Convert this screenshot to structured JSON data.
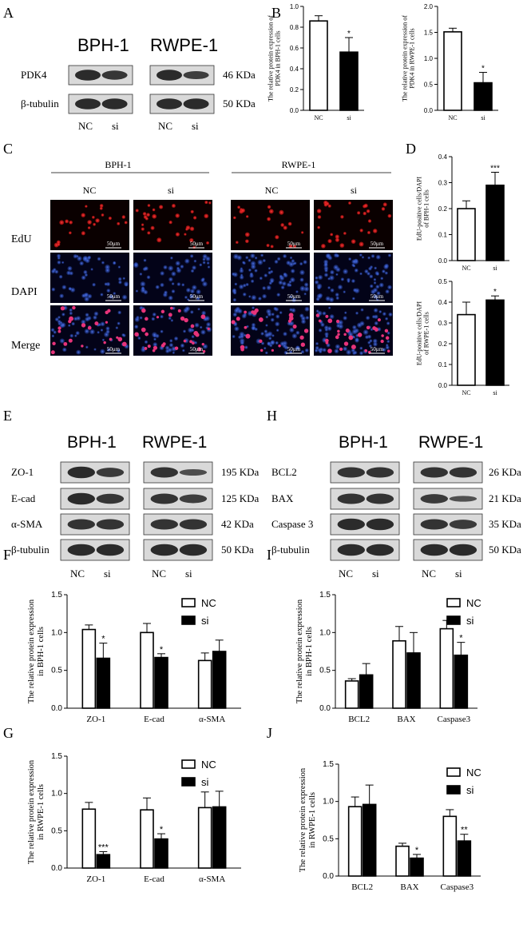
{
  "panel_labels": {
    "A": "A",
    "B": "B",
    "C": "C",
    "D": "D",
    "E": "E",
    "F": "F",
    "G": "G",
    "H": "H",
    "I": "I",
    "J": "J"
  },
  "cells": {
    "bph": "BPH-1",
    "rwpe": "RWPE-1"
  },
  "groups": {
    "nc": "NC",
    "si": "si"
  },
  "panel_a": {
    "proteins": [
      "PDK4",
      "β-tubulin"
    ],
    "sizes": [
      "46 KDa",
      "50 KDa"
    ]
  },
  "panel_c": {
    "rows": [
      "EdU",
      "DAPI",
      "Merge"
    ],
    "scale": "50μm"
  },
  "panel_e": {
    "proteins": [
      "ZO-1",
      "E-cad",
      "α-SMA",
      "β-tubulin"
    ],
    "sizes": [
      "195 KDa",
      "125 KDa",
      "42 KDa",
      "50 KDa"
    ]
  },
  "panel_h": {
    "proteins": [
      "BCL2",
      "BAX",
      "Caspase 3",
      "β-tubulin"
    ],
    "sizes": [
      "26 KDa",
      "21 KDa",
      "35 KDa",
      "50 KDa"
    ]
  },
  "chart_data": [
    {
      "id": "B1",
      "type": "bar",
      "ylabel": "The relative protein expression of\nPDK4 in BPH-1 cells",
      "categories": [
        "NC",
        "si"
      ],
      "values": [
        0.86,
        0.56
      ],
      "errors": [
        0.05,
        0.14
      ],
      "sig": [
        "",
        "*"
      ],
      "ylim": [
        0,
        1.0
      ],
      "yticks": [
        0,
        0.2,
        0.4,
        0.6,
        0.8,
        1.0
      ]
    },
    {
      "id": "B2",
      "type": "bar",
      "ylabel": "The relative protein expression of\nPDK4 in RWPE-1 cells",
      "categories": [
        "NC",
        "si"
      ],
      "values": [
        1.51,
        0.53
      ],
      "errors": [
        0.07,
        0.2
      ],
      "sig": [
        "",
        "*"
      ],
      "ylim": [
        0,
        2.0
      ],
      "yticks": [
        0,
        0.5,
        1.0,
        1.5,
        2.0
      ]
    },
    {
      "id": "D1",
      "type": "bar",
      "ylabel": "EdU-positive cells/DAPI\nof BPH-1 cells",
      "categories": [
        "NC",
        "si"
      ],
      "values": [
        0.2,
        0.29
      ],
      "errors": [
        0.03,
        0.05
      ],
      "sig": [
        "",
        "***"
      ],
      "ylim": [
        0,
        0.4
      ],
      "yticks": [
        0,
        0.1,
        0.2,
        0.3,
        0.4
      ]
    },
    {
      "id": "D2",
      "type": "bar",
      "ylabel": "EdU-positive cells/DAPI\nof RWPE-1 cells",
      "categories": [
        "NC",
        "si"
      ],
      "values": [
        0.34,
        0.41
      ],
      "errors": [
        0.06,
        0.02
      ],
      "sig": [
        "",
        "*"
      ],
      "ylim": [
        0,
        0.5
      ],
      "yticks": [
        0,
        0.1,
        0.2,
        0.3,
        0.4,
        0.5
      ]
    },
    {
      "id": "F",
      "type": "bar",
      "ylabel": "The relative protein expression\nin BPH-1 cells",
      "categories": [
        "ZO-1",
        "E-cad",
        "α-SMA"
      ],
      "series": [
        {
          "name": "NC",
          "values": [
            1.04,
            1.0,
            0.63
          ],
          "errors": [
            0.06,
            0.12,
            0.1
          ]
        },
        {
          "name": "si",
          "values": [
            0.66,
            0.67,
            0.75
          ],
          "errors": [
            0.2,
            0.05,
            0.15
          ]
        }
      ],
      "sig": [
        "*",
        "*",
        ""
      ],
      "ylim": [
        0,
        1.5
      ],
      "yticks": [
        0,
        0.5,
        1.0,
        1.5
      ],
      "legend": "top-right"
    },
    {
      "id": "G",
      "type": "bar",
      "ylabel": "The relative protein expression\nin RWPE-1 cells",
      "categories": [
        "ZO-1",
        "E-cad",
        "α-SMA"
      ],
      "series": [
        {
          "name": "NC",
          "values": [
            0.79,
            0.78,
            0.81
          ],
          "errors": [
            0.09,
            0.16,
            0.21
          ]
        },
        {
          "name": "si",
          "values": [
            0.18,
            0.39,
            0.82
          ],
          "errors": [
            0.04,
            0.07,
            0.21
          ]
        }
      ],
      "sig": [
        "***",
        "*",
        ""
      ],
      "ylim": [
        0,
        1.5
      ],
      "yticks": [
        0,
        0.5,
        1.0,
        1.5
      ],
      "legend": "top-right"
    },
    {
      "id": "I",
      "type": "bar",
      "ylabel": "The relative protein expression\nin BPH-1 cells",
      "categories": [
        "BCL2",
        "BAX",
        "Caspase3"
      ],
      "series": [
        {
          "name": "NC",
          "values": [
            0.36,
            0.89,
            1.05
          ],
          "errors": [
            0.03,
            0.19,
            0.11
          ]
        },
        {
          "name": "si",
          "values": [
            0.44,
            0.73,
            0.7
          ],
          "errors": [
            0.15,
            0.27,
            0.17
          ]
        }
      ],
      "sig": [
        "",
        "",
        "*"
      ],
      "ylim": [
        0,
        1.5
      ],
      "yticks": [
        0,
        0.5,
        1.0,
        1.5
      ],
      "legend": "top-right"
    },
    {
      "id": "J",
      "type": "bar",
      "ylabel": "The relative protein expression\nin RWPE-1 cells",
      "categories": [
        "BCL2",
        "BAX",
        "Caspase3"
      ],
      "series": [
        {
          "name": "NC",
          "values": [
            0.93,
            0.4,
            0.8
          ],
          "errors": [
            0.13,
            0.04,
            0.09
          ]
        },
        {
          "name": "si",
          "values": [
            0.96,
            0.24,
            0.47
          ],
          "errors": [
            0.26,
            0.05,
            0.09
          ]
        }
      ],
      "sig": [
        "",
        "*",
        "**"
      ],
      "ylim": [
        0,
        1.5
      ],
      "yticks": [
        0,
        0.5,
        1.0,
        1.5
      ],
      "legend": "top-right"
    }
  ]
}
